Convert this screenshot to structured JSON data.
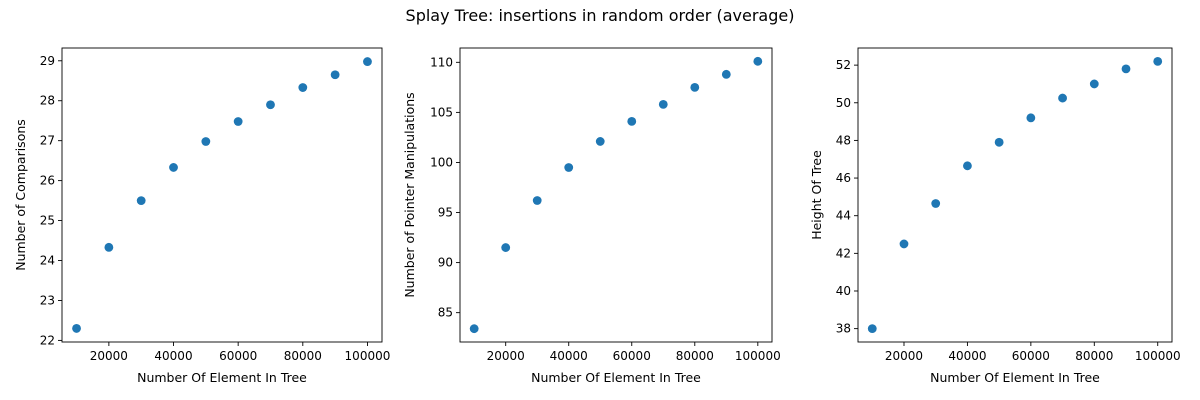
{
  "figure": {
    "title": "Splay Tree: insertions in random order (average)"
  },
  "chart_data": [
    {
      "type": "scatter",
      "xlabel": "Number Of Element In Tree",
      "ylabel": "Number of Comparisons",
      "x": [
        10000,
        20000,
        30000,
        40000,
        50000,
        60000,
        70000,
        80000,
        90000,
        100000
      ],
      "y": [
        22.3,
        24.33,
        25.5,
        26.33,
        26.98,
        27.48,
        27.9,
        28.33,
        28.65,
        28.98
      ],
      "xlim": [
        5500,
        104500
      ],
      "ylim": [
        21.96,
        29.32
      ],
      "xticks": [
        20000,
        40000,
        60000,
        80000,
        100000
      ],
      "yticks": [
        22,
        23,
        24,
        25,
        26,
        27,
        28,
        29
      ],
      "color": "#1f77b4",
      "grid": false
    },
    {
      "type": "scatter",
      "xlabel": "Number Of Element In Tree",
      "ylabel": "Number of Pointer Manipulations",
      "x": [
        10000,
        20000,
        30000,
        40000,
        50000,
        60000,
        70000,
        80000,
        90000,
        100000
      ],
      "y": [
        83.4,
        91.5,
        96.2,
        99.5,
        102.1,
        104.1,
        105.8,
        107.5,
        108.8,
        110.1
      ],
      "xlim": [
        5500,
        104500
      ],
      "ylim": [
        82.07,
        111.43
      ],
      "xticks": [
        20000,
        40000,
        60000,
        80000,
        100000
      ],
      "yticks": [
        85,
        90,
        95,
        100,
        105,
        110
      ],
      "color": "#1f77b4",
      "grid": false
    },
    {
      "type": "scatter",
      "xlabel": "Number Of Element In Tree",
      "ylabel": "Height Of Tree",
      "x": [
        10000,
        20000,
        30000,
        40000,
        50000,
        60000,
        70000,
        80000,
        90000,
        100000
      ],
      "y": [
        38.0,
        42.5,
        44.65,
        46.65,
        47.9,
        49.2,
        50.25,
        51.0,
        51.8,
        52.2
      ],
      "xlim": [
        5500,
        104500
      ],
      "ylim": [
        37.29,
        52.91
      ],
      "xticks": [
        20000,
        40000,
        60000,
        80000,
        100000
      ],
      "yticks": [
        38,
        40,
        42,
        44,
        46,
        48,
        50,
        52
      ],
      "color": "#1f77b4",
      "grid": false
    }
  ]
}
